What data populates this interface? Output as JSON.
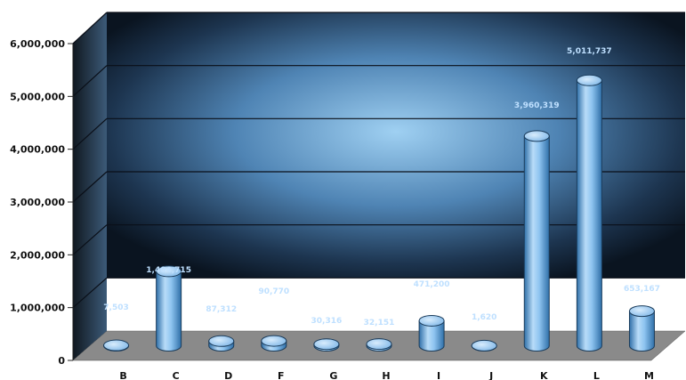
{
  "chart_data": {
    "type": "bar",
    "style": "3d-cylinder",
    "title": "",
    "xlabel": "",
    "ylabel": "",
    "ylim": [
      0,
      6000000
    ],
    "yticks": [
      0,
      1000000,
      2000000,
      3000000,
      4000000,
      5000000,
      6000000
    ],
    "ytick_labels": [
      "0",
      "1,000,000",
      "2,000,000",
      "3,000,000",
      "4,000,000",
      "5,000,000",
      "6,000,000"
    ],
    "grid": true,
    "legend": "none",
    "categories": [
      "B",
      "C",
      "D",
      "F",
      "G",
      "H",
      "I",
      "J",
      "K",
      "L",
      "M"
    ],
    "values": [
      7503,
      1404715,
      87312,
      90770,
      30316,
      32151,
      471200,
      1620,
      3960319,
      5011737,
      653167
    ],
    "data_labels": [
      "7,503",
      "1,404,715",
      "87,312",
      "90,770",
      "30,316",
      "32,151",
      "471,200",
      "1,620",
      "3,960,319",
      "5,011,737",
      "653,167"
    ],
    "colors": {
      "cylinder": "#8ec4f0",
      "cylinder_dark": "#2f6fa8",
      "wall_center": "#9fd0f2",
      "wall_edge": "#0a1420",
      "floor": "#8a8a8a",
      "gridline": "#0a0f18",
      "data_label": "#bfe0ff"
    }
  }
}
